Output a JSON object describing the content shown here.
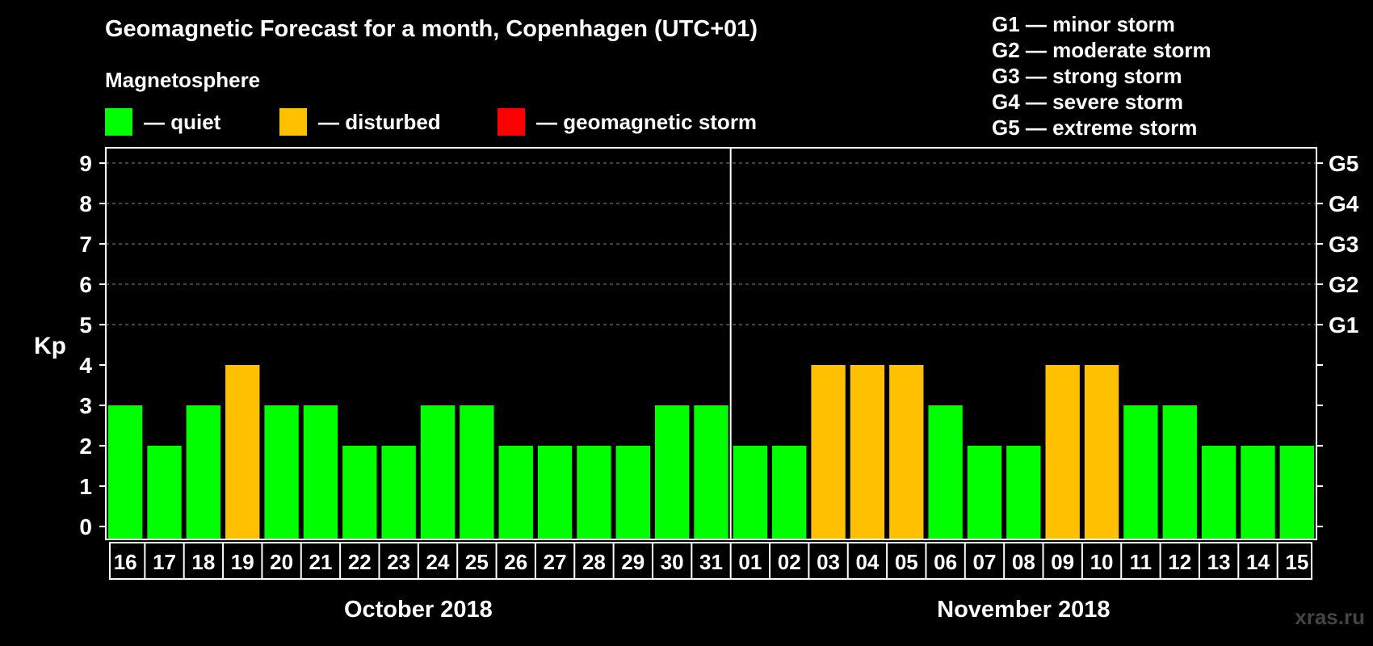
{
  "header": {
    "title": "Geomagnetic Forecast for a month, Copenhagen (UTC+01)",
    "subtitle": "Magnetosphere"
  },
  "legend": [
    {
      "label": "— quiet",
      "color": "#00ff00"
    },
    {
      "label": "— disturbed",
      "color": "#ffc000"
    },
    {
      "label": "— geomagnetic storm",
      "color": "#ff0000"
    }
  ],
  "storm_scale": [
    "G1 — minor storm",
    "G2 — moderate storm",
    "G3 — strong storm",
    "G4 — severe storm",
    "G5 — extreme storm"
  ],
  "watermark": "xras.ru",
  "chart_data": {
    "type": "bar",
    "ylabel": "Kp",
    "ylim": [
      0,
      9
    ],
    "yticks": [
      0,
      1,
      2,
      3,
      4,
      5,
      6,
      7,
      8,
      9
    ],
    "storm_levels": [
      {
        "kp": 5,
        "label": "G1"
      },
      {
        "kp": 6,
        "label": "G2"
      },
      {
        "kp": 7,
        "label": "G3"
      },
      {
        "kp": 8,
        "label": "G4"
      },
      {
        "kp": 9,
        "label": "G5"
      }
    ],
    "grid": "dashed horizontal lines at Kp 5–9",
    "months": [
      {
        "label": "October 2018",
        "days": [
          "16",
          "17",
          "18",
          "19",
          "20",
          "21",
          "22",
          "23",
          "24",
          "25",
          "26",
          "27",
          "28",
          "29",
          "30",
          "31"
        ]
      },
      {
        "label": "November 2018",
        "days": [
          "01",
          "02",
          "03",
          "04",
          "05",
          "06",
          "07",
          "08",
          "09",
          "10",
          "11",
          "12",
          "13",
          "14",
          "15"
        ]
      }
    ],
    "categories": [
      "16",
      "17",
      "18",
      "19",
      "20",
      "21",
      "22",
      "23",
      "24",
      "25",
      "26",
      "27",
      "28",
      "29",
      "30",
      "31",
      "01",
      "02",
      "03",
      "04",
      "05",
      "06",
      "07",
      "08",
      "09",
      "10",
      "11",
      "12",
      "13",
      "14",
      "15"
    ],
    "values": [
      3,
      2,
      3,
      4,
      3,
      3,
      2,
      2,
      3,
      3,
      2,
      2,
      2,
      2,
      3,
      3,
      2,
      2,
      4,
      4,
      4,
      3,
      2,
      2,
      4,
      4,
      3,
      3,
      2,
      2,
      2
    ],
    "color_rule": {
      "quiet": "Kp < 4",
      "disturbed": "Kp = 4",
      "geomagnetic storm": "Kp >= 5"
    }
  }
}
